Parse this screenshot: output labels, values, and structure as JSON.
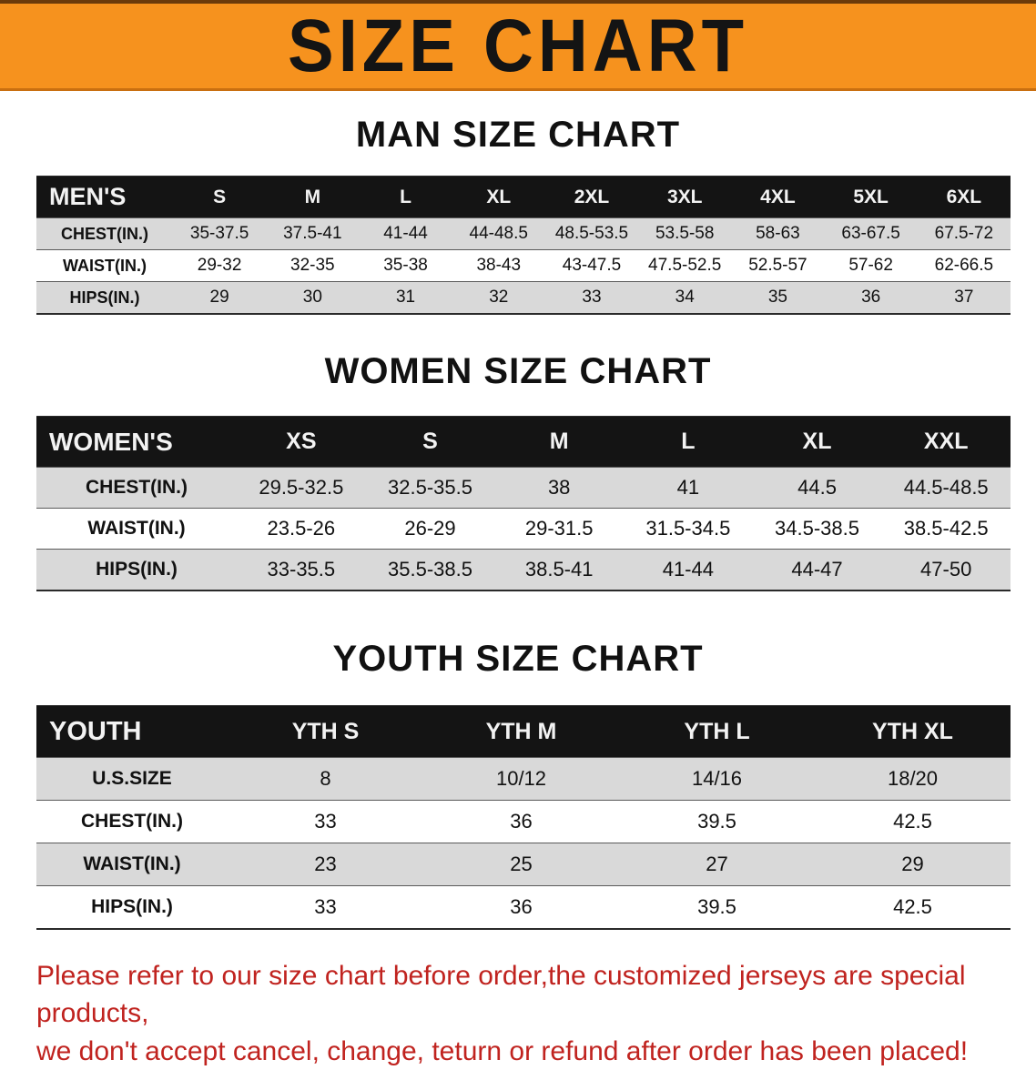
{
  "banner": {
    "title": "SIZE CHART",
    "bg_color": "#f6921e",
    "text_color": "#141414"
  },
  "sections": [
    {
      "heading": "MAN SIZE CHART",
      "table": {
        "label": "MEN'S",
        "columns": [
          "S",
          "M",
          "L",
          "XL",
          "2XL",
          "3XL",
          "4XL",
          "5XL",
          "6XL"
        ],
        "rows": [
          {
            "label": "CHEST(IN.)",
            "values": [
              "35-37.5",
              "37.5-41",
              "41-44",
              "44-48.5",
              "48.5-53.5",
              "53.5-58",
              "58-63",
              "63-67.5",
              "67.5-72"
            ]
          },
          {
            "label": "WAIST(IN.)",
            "values": [
              "29-32",
              "32-35",
              "35-38",
              "38-43",
              "43-47.5",
              "47.5-52.5",
              "52.5-57",
              "57-62",
              "62-66.5"
            ]
          },
          {
            "label": "HIPS(IN.)",
            "values": [
              "29",
              "30",
              "31",
              "32",
              "33",
              "34",
              "35",
              "36",
              "37"
            ]
          }
        ]
      }
    },
    {
      "heading": "WOMEN SIZE CHART",
      "table": {
        "label": "WOMEN'S",
        "columns": [
          "XS",
          "S",
          "M",
          "L",
          "XL",
          "XXL"
        ],
        "rows": [
          {
            "label": "CHEST(IN.)",
            "values": [
              "29.5-32.5",
              "32.5-35.5",
              "38",
              "41",
              "44.5",
              "44.5-48.5"
            ]
          },
          {
            "label": "WAIST(IN.)",
            "values": [
              "23.5-26",
              "26-29",
              "29-31.5",
              "31.5-34.5",
              "34.5-38.5",
              "38.5-42.5"
            ]
          },
          {
            "label": "HIPS(IN.)",
            "values": [
              "33-35.5",
              "35.5-38.5",
              "38.5-41",
              "41-44",
              "44-47",
              "47-50"
            ]
          }
        ]
      }
    },
    {
      "heading": "YOUTH SIZE CHART",
      "table": {
        "label": "YOUTH",
        "columns": [
          "YTH S",
          "YTH M",
          "YTH L",
          "YTH XL"
        ],
        "rows": [
          {
            "label": "U.S.SIZE",
            "values": [
              "8",
              "10/12",
              "14/16",
              "18/20"
            ]
          },
          {
            "label": "CHEST(IN.)",
            "values": [
              "33",
              "36",
              "39.5",
              "42.5"
            ]
          },
          {
            "label": "WAIST(IN.)",
            "values": [
              "23",
              "25",
              "27",
              "29"
            ]
          },
          {
            "label": "HIPS(IN.)",
            "values": [
              "33",
              "36",
              "39.5",
              "42.5"
            ]
          }
        ]
      }
    }
  ],
  "table_colors": {
    "header_bg": "#141414",
    "header_text": "#f3f3f3",
    "alt_row_bg": "#d9d9d9",
    "row_bg": "#ffffff"
  },
  "disclaimer": {
    "line1": "Please refer to our size chart before order,the customized jerseys are special products,",
    "line2": "we don't accept cancel, change, teturn or refund after order has been placed!",
    "color": "#c0231f"
  }
}
